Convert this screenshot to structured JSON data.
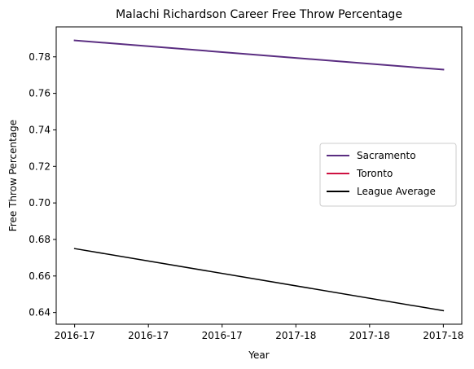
{
  "chart_data": {
    "type": "line",
    "title": "Malachi Richardson Career Free Throw Percentage",
    "xlabel": "Year",
    "ylabel": "Free Throw Percentage",
    "x_tick_labels": [
      "2016-17",
      "2016-17",
      "2016-17",
      "2017-18",
      "2017-18",
      "2017-18"
    ],
    "y_ticks": [
      0.64,
      0.66,
      0.68,
      0.7,
      0.72,
      0.74,
      0.76,
      0.78
    ],
    "y_tick_labels": [
      "0.64",
      "0.66",
      "0.68",
      "0.70",
      "0.72",
      "0.74",
      "0.76",
      "0.78"
    ],
    "xlim": [
      -0.25,
      5.25
    ],
    "ylim": [
      0.6336,
      0.7964
    ],
    "grid": false,
    "legend_position": "center-right",
    "series": [
      {
        "name": "Sacramento",
        "color": "#5a2d81",
        "linewidth": 2,
        "x": [
          0,
          5
        ],
        "values": [
          0.789,
          0.773
        ]
      },
      {
        "name": "Toronto",
        "color": "#ce1141",
        "linewidth": 2,
        "x": [],
        "values": []
      },
      {
        "name": "League Average",
        "color": "#000000",
        "linewidth": 1.5,
        "x": [
          0,
          5
        ],
        "values": [
          0.675,
          0.641
        ]
      }
    ]
  }
}
